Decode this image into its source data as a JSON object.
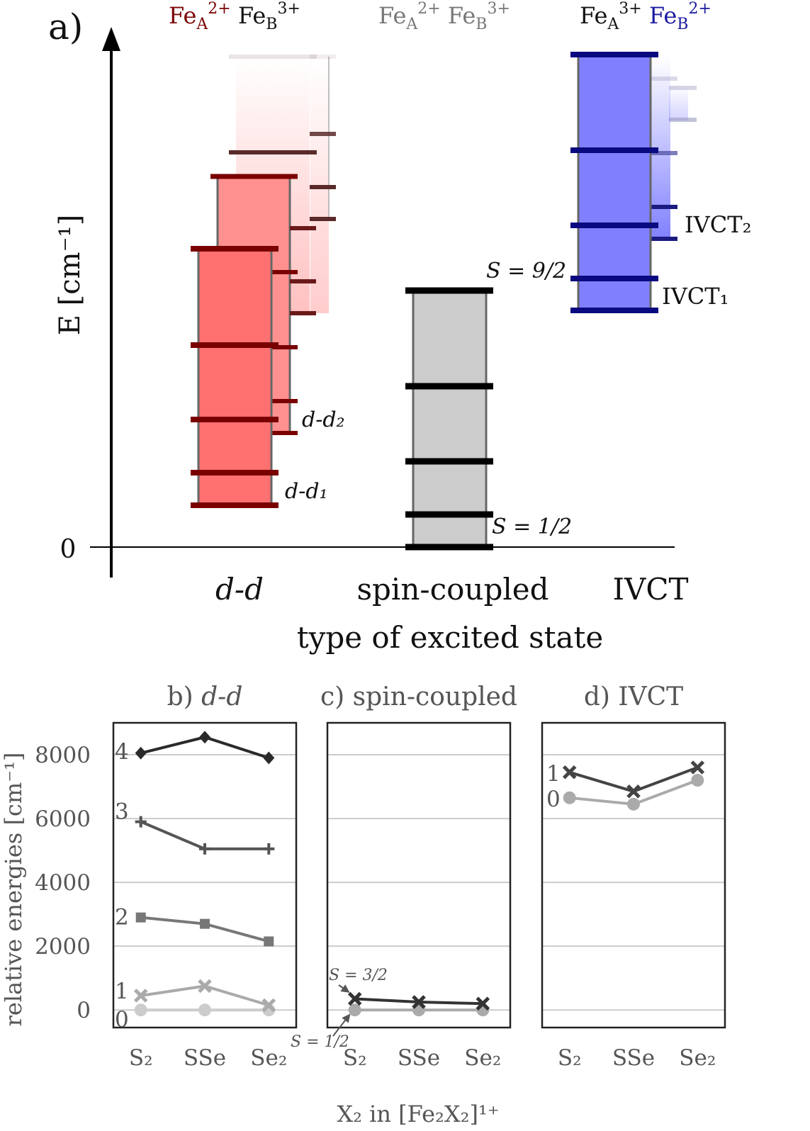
{
  "panel_a": {
    "label": "a)",
    "ylabel": "E [cm⁻¹]",
    "zero_tick": "0",
    "xlabel": "type of excited state",
    "header_dd": [
      {
        "t": "Fe",
        "c": "#7a0000"
      },
      {
        "t": "A",
        "c": "#7a0000",
        "sub": true
      },
      {
        "t": "2+",
        "c": "#7a0000",
        "sup": true
      },
      {
        "t": " Fe",
        "c": "#111111"
      },
      {
        "t": "B",
        "c": "#111111",
        "sub": true
      },
      {
        "t": "3+",
        "c": "#111111",
        "sup": true
      }
    ],
    "header_sc": [
      {
        "t": "Fe",
        "c": "#777777"
      },
      {
        "t": "A",
        "c": "#777777",
        "sub": true
      },
      {
        "t": "2+",
        "c": "#777777",
        "sup": true
      },
      {
        "t": " Fe",
        "c": "#777777"
      },
      {
        "t": "B",
        "c": "#777777",
        "sub": true
      },
      {
        "t": "3+",
        "c": "#777777",
        "sup": true
      }
    ],
    "header_ivct": [
      {
        "t": "Fe",
        "c": "#111111"
      },
      {
        "t": "A",
        "c": "#111111",
        "sub": true
      },
      {
        "t": "3+",
        "c": "#111111",
        "sup": true
      },
      {
        "t": " Fe",
        "c": "#1a1aa0"
      },
      {
        "t": "B",
        "c": "#1a1aa0",
        "sub": true
      },
      {
        "t": "2+",
        "c": "#1a1aa0",
        "sup": true
      }
    ],
    "cat_dd": "d-d",
    "cat_sc": "spin-coupled",
    "cat_ivct": "IVCT",
    "label_dd1": "d-d₁",
    "label_dd2": "d-d₂",
    "label_s92": "S = 9/2",
    "label_s12": "S = 1/2",
    "label_ivct1": "IVCT₁",
    "label_ivct2": "IVCT₂"
  },
  "chart_data": [
    {
      "type": "line",
      "title": "b) d-d",
      "xlabel": "X₂ in [Fe₂X₂]¹⁺",
      "ylabel": "relative energies [cm⁻¹]",
      "categories": [
        "S₂",
        "SSe",
        "Se₂"
      ],
      "ylim": [
        -550,
        9000
      ],
      "yticks": [
        "0",
        "2000",
        "4000",
        "6000",
        "8000"
      ],
      "series": [
        {
          "name": "0",
          "marker": "circle",
          "color": "#cccccc",
          "values": [
            0,
            0,
            0
          ]
        },
        {
          "name": "1",
          "marker": "x",
          "color": "#aaaaaa",
          "values": [
            450,
            750,
            150
          ]
        },
        {
          "name": "2",
          "marker": "square",
          "color": "#777777",
          "values": [
            2900,
            2700,
            2150
          ]
        },
        {
          "name": "3",
          "marker": "plus",
          "color": "#555555",
          "values": [
            5900,
            5050,
            5050
          ]
        },
        {
          "name": "4",
          "marker": "diamond",
          "color": "#2a2a2a",
          "values": [
            8050,
            8550,
            7900
          ]
        }
      ]
    },
    {
      "type": "line",
      "title": "c) spin-coupled",
      "categories": [
        "S₂",
        "SSe",
        "Se₂"
      ],
      "ylim": [
        -550,
        9000
      ],
      "annotations": [
        "S = 3/2",
        "S = 1/2"
      ],
      "series": [
        {
          "name": "S = 1/2",
          "marker": "circle",
          "color": "#aaaaaa",
          "values": [
            0,
            0,
            0
          ]
        },
        {
          "name": "S = 3/2",
          "marker": "x",
          "color": "#333333",
          "values": [
            350,
            250,
            200
          ]
        }
      ]
    },
    {
      "type": "line",
      "title": "d) IVCT",
      "categories": [
        "S₂",
        "SSe",
        "Se₂"
      ],
      "ylim": [
        -550,
        9000
      ],
      "series": [
        {
          "name": "0",
          "marker": "circle",
          "color": "#aaaaaa",
          "values": [
            6650,
            6450,
            7200
          ]
        },
        {
          "name": "1",
          "marker": "x",
          "color": "#444444",
          "values": [
            7450,
            6850,
            7600
          ]
        }
      ]
    }
  ]
}
